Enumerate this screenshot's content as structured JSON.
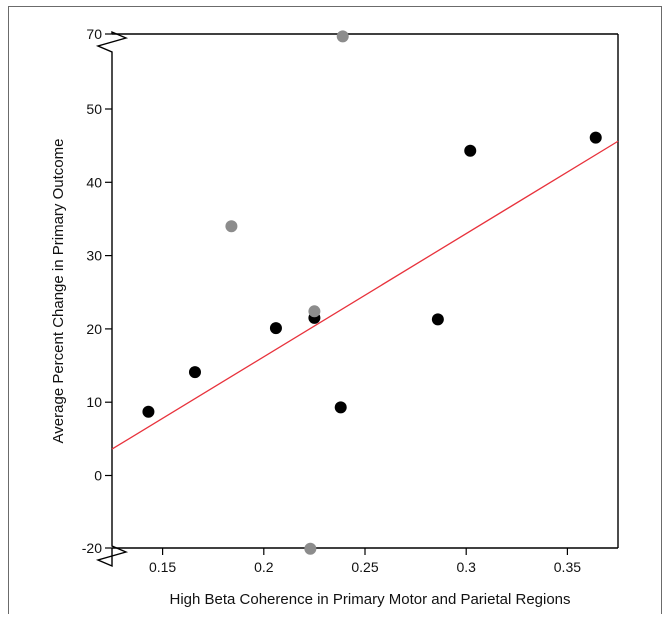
{
  "chart_data": {
    "type": "scatter",
    "xlabel": "High Beta Coherence in Primary Motor and Parietal Regions",
    "ylabel": "Average Percent Change in Primary Outcome",
    "xlim": [
      0.125,
      0.375
    ],
    "ylim": [
      -20,
      70
    ],
    "x_ticks": [
      0.15,
      0.2,
      0.25,
      0.3,
      0.35
    ],
    "x_tick_labels": [
      "0.15",
      "0.2",
      "0.25",
      "0.3",
      "0.35"
    ],
    "y_ticks": [
      -20,
      0,
      10,
      20,
      30,
      40,
      50,
      70
    ],
    "y_tick_labels": [
      "-20",
      "0",
      "10",
      "20",
      "30",
      "40",
      "50",
      "70"
    ],
    "axis_breaks_y": [
      0,
      60
    ],
    "grid": false,
    "legend": "none",
    "series": [
      {
        "color": "#000000",
        "points": [
          {
            "x": 0.143,
            "y": 8.7
          },
          {
            "x": 0.166,
            "y": 14.1
          },
          {
            "x": 0.206,
            "y": 20.1
          },
          {
            "x": 0.225,
            "y": 21.5
          },
          {
            "x": 0.238,
            "y": 9.3
          },
          {
            "x": 0.286,
            "y": 21.3
          },
          {
            "x": 0.302,
            "y": 44.3
          },
          {
            "x": 0.364,
            "y": 46.1
          }
        ]
      },
      {
        "color": "#8c8c8c",
        "points": [
          {
            "x": 0.184,
            "y": 34.0
          },
          {
            "x": 0.225,
            "y": 22.4
          },
          {
            "x": 0.239,
            "y": 67.0
          },
          {
            "x": 0.223,
            "y": -19.0
          }
        ]
      }
    ],
    "fit_line": {
      "color": "#e8323c",
      "x": [
        0.125,
        0.375
      ],
      "y": [
        3.6,
        45.6
      ]
    }
  }
}
